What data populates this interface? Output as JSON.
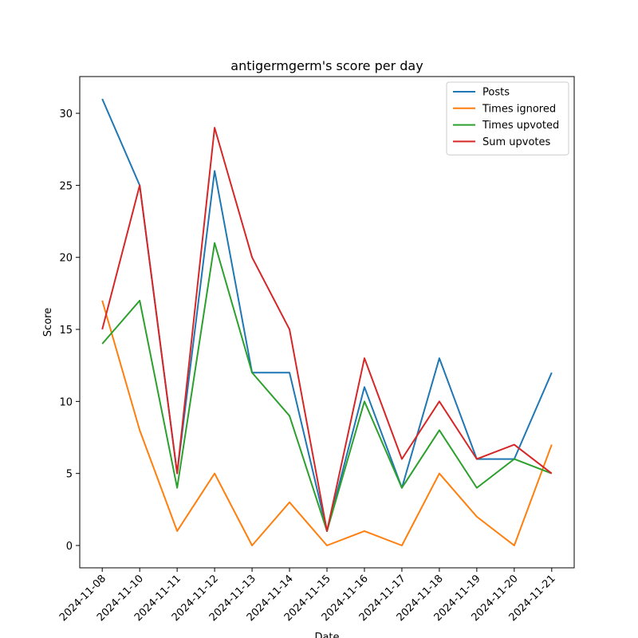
{
  "chart_data": {
    "type": "line",
    "title": "antigermgerm's score per day",
    "xlabel": "Date",
    "ylabel": "Score",
    "categories": [
      "2024-11-08",
      "2024-11-10",
      "2024-11-11",
      "2024-11-12",
      "2024-11-13",
      "2024-11-14",
      "2024-11-15",
      "2024-11-16",
      "2024-11-17",
      "2024-11-18",
      "2024-11-19",
      "2024-11-20",
      "2024-11-21"
    ],
    "ylim": [
      -1.55,
      32.55
    ],
    "yticks": [
      0,
      5,
      10,
      15,
      20,
      25,
      30
    ],
    "grid": false,
    "legend_position": "top-right",
    "series": [
      {
        "name": "Posts",
        "color": "#1f77b4",
        "values": [
          31,
          25,
          5,
          26,
          12,
          12,
          1,
          11,
          4,
          13,
          6,
          6,
          12
        ]
      },
      {
        "name": "Times ignored",
        "color": "#ff7f0e",
        "values": [
          17,
          8,
          1,
          5,
          0,
          3,
          0,
          1,
          0,
          5,
          2,
          0,
          7
        ]
      },
      {
        "name": "Times upvoted",
        "color": "#2ca02c",
        "values": [
          14,
          17,
          4,
          21,
          12,
          9,
          1,
          10,
          4,
          8,
          4,
          6,
          5
        ]
      },
      {
        "name": "Sum upvotes",
        "color": "#d62728",
        "values": [
          15,
          25,
          5,
          29,
          20,
          15,
          1,
          13,
          6,
          10,
          6,
          7,
          5
        ]
      }
    ]
  }
}
